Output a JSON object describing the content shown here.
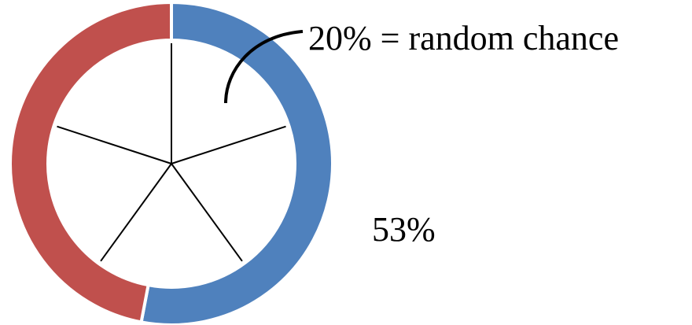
{
  "chart_data": {
    "type": "pie",
    "subtype": "donut",
    "slices": [
      {
        "value": 53,
        "label": "53%",
        "color": "#4f81bd"
      },
      {
        "value": 47,
        "color": "#c0504d"
      }
    ],
    "start": "top, clockwise",
    "divisions": 5,
    "annotations": [
      {
        "text": "20% = random chance"
      }
    ]
  }
}
